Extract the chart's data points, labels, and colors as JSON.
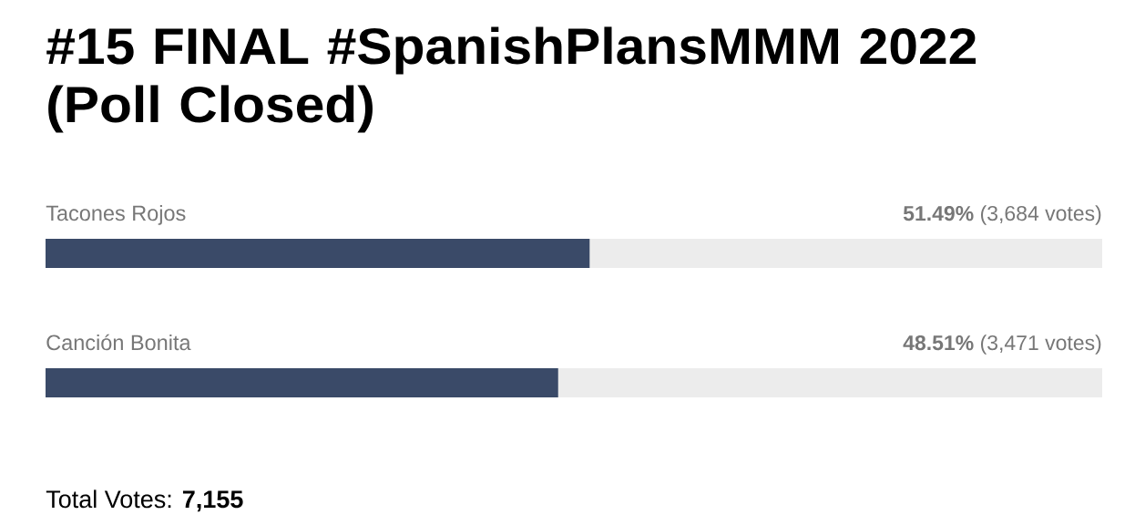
{
  "chart_data": {
    "type": "bar",
    "orientation": "horizontal",
    "title": "#15 FINAL #SpanishPlansMMM 2022 (Poll Closed)",
    "categories": [
      "Tacones Rojos",
      "Canción Bonita"
    ],
    "values": [
      51.49,
      48.51
    ],
    "color": "#3a4a68",
    "xlim": [
      0,
      100
    ],
    "value_labels": [
      "**51.49%** (3,684 votes)",
      "**48.51%** (3,471 votes)"
    ],
    "tick_labels": false,
    "annotations": [
      "Total Votes: **7,155**"
    ]
  }
}
